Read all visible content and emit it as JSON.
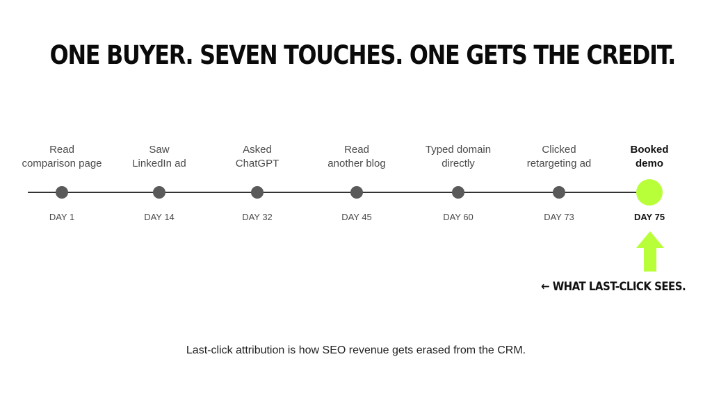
{
  "headline": "ONE BUYER. SEVEN TOUCHES. ONE GETS THE CREDIT.",
  "events": [
    {
      "label": "Read\ncomparison page",
      "day": "DAY 1"
    },
    {
      "label": "Saw\nLinkedIn ad",
      "day": "DAY 14"
    },
    {
      "label": "Asked\nChatGPT",
      "day": "DAY 32"
    },
    {
      "label": "Read\nanother blog",
      "day": "DAY 45"
    },
    {
      "label": "Typed domain\ndirectly",
      "day": "DAY 60"
    },
    {
      "label": "Clicked\nretargeting ad",
      "day": "DAY 73"
    },
    {
      "label": "Booked\ndemo",
      "day": "DAY 75"
    }
  ],
  "callout": {
    "arrow_glyph": "←",
    "text": "WHAT LAST-CLICK SEES."
  },
  "caption": "Last-click attribution is how SEO revenue gets erased from the CRM.",
  "colors": {
    "accent": "#b8ff3a",
    "node": "#5a5a5a",
    "line": "#333333"
  },
  "icons": {
    "pointer": "up-arrow-icon"
  }
}
